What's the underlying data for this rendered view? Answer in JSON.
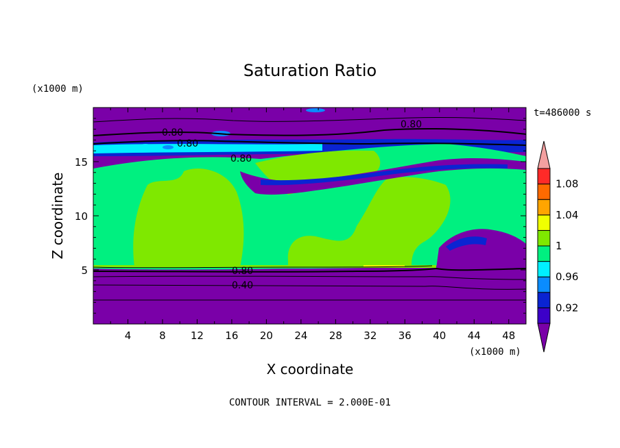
{
  "chart_data": {
    "type": "contour",
    "title": "Saturation Ratio",
    "xlabel": "X coordinate",
    "ylabel": "Z coordinate",
    "x_units": "(x1000 m)",
    "y_units": "(x1000 m)",
    "time_label": "t=486000 s",
    "footer": "CONTOUR INTERVAL = 2.000E-01",
    "xlim": [
      0,
      50
    ],
    "ylim": [
      0,
      20
    ],
    "x_ticks": [
      "4",
      "8",
      "12",
      "16",
      "20",
      "24",
      "28",
      "32",
      "36",
      "40",
      "44",
      "48"
    ],
    "y_ticks": [
      "5",
      "10",
      "15"
    ],
    "contour_labels": [
      "0.80",
      "0.80",
      "0.80",
      "0.80",
      "0.80",
      "0.40"
    ],
    "colorbar": {
      "labels": [
        "0.92",
        "0.96",
        "1",
        "1.04",
        "1.08"
      ],
      "levels": [
        0.9,
        0.92,
        0.94,
        0.96,
        0.98,
        1.0,
        1.02,
        1.04,
        1.06,
        1.08,
        1.1
      ],
      "colors": [
        "#7a00a8",
        "#3c00c8",
        "#0a24d2",
        "#0a8cff",
        "#00f0ff",
        "#00f080",
        "#7fe800",
        "#f0ff00",
        "#ffa500",
        "#ff6a00",
        "#ff2a28",
        "#f4a0a0"
      ]
    }
  }
}
